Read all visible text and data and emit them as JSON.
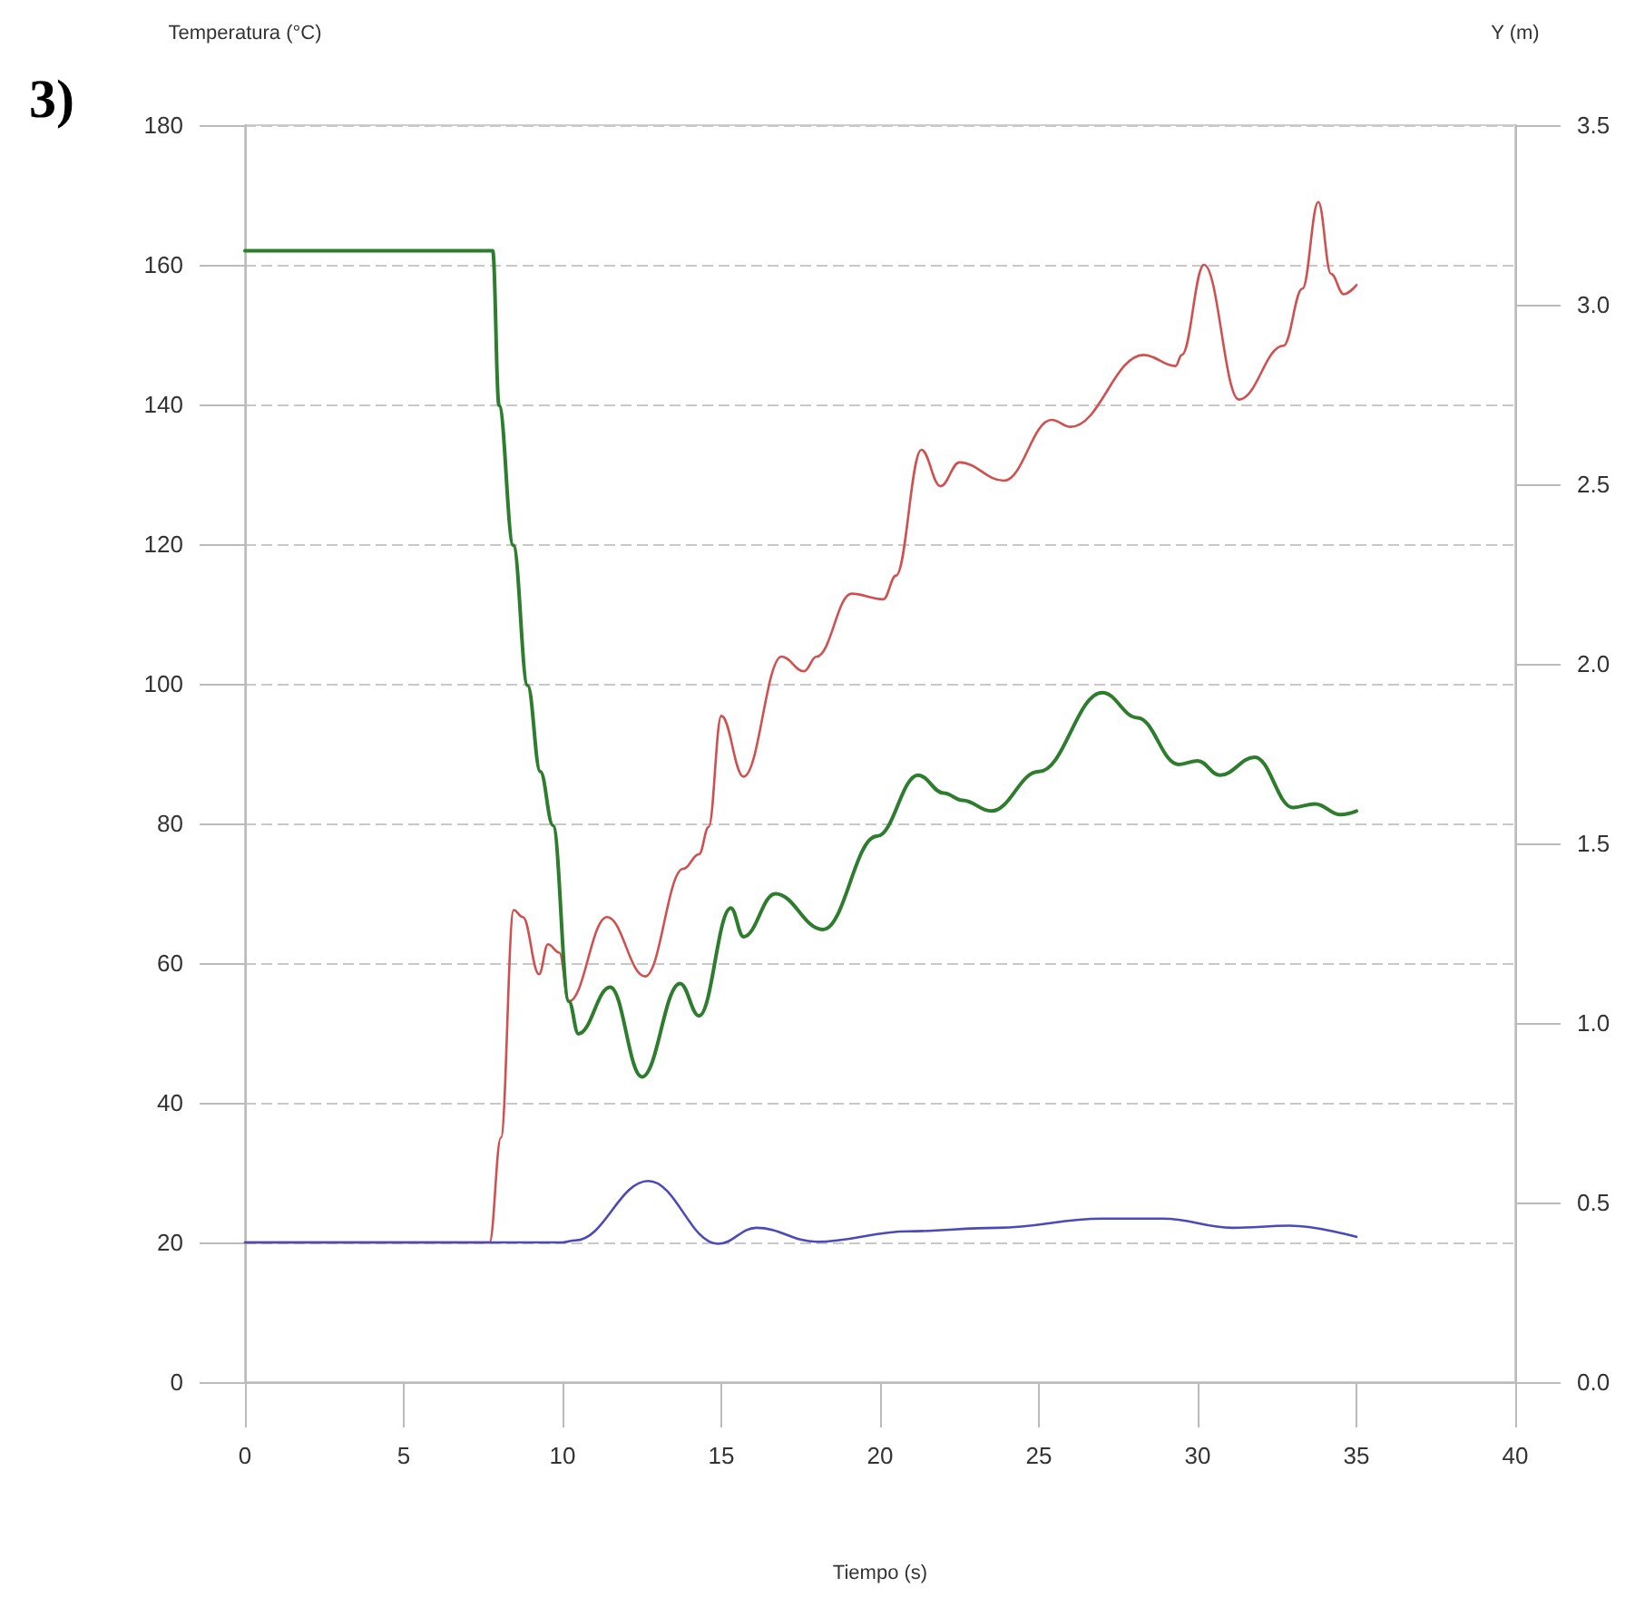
{
  "chart_data": {
    "type": "line",
    "xlabel": "Tiempo (s)",
    "ylabel": "Temperatura (°C)",
    "y2label": "Y (m)",
    "annotations": [
      "3)"
    ],
    "xlim": [
      0,
      40
    ],
    "xticks": [
      0,
      5,
      10,
      15,
      20,
      25,
      30,
      35,
      40
    ],
    "ylim": [
      0,
      180
    ],
    "yticks": [
      0,
      20,
      40,
      60,
      80,
      100,
      120,
      140,
      160,
      180
    ],
    "y2lim": [
      0,
      3.5
    ],
    "y2ticks": [
      {
        "value": 0,
        "label": "0.0"
      },
      {
        "value": 0.5,
        "label": "0.5"
      },
      {
        "value": 1,
        "label": "1.0"
      },
      {
        "value": 1.5,
        "label": "1.5"
      },
      {
        "value": 2,
        "label": "2.0"
      },
      {
        "value": 2.5,
        "label": "2.5"
      },
      {
        "value": 3,
        "label": "3.0"
      },
      {
        "value": 3.5,
        "label": "3.5"
      }
    ],
    "grid": "y",
    "marker": "none",
    "line_style": "solid",
    "series": [
      {
        "color": "#d05050",
        "x": [
          0,
          7.7,
          8.06,
          8.46,
          8.75,
          9.26,
          9.54,
          9.9,
          10.2,
          11.4,
          12.6,
          13.8,
          14.3,
          14.6,
          15.0,
          15.7,
          16.9,
          17.6,
          18.0,
          19.1,
          20.1,
          20.5,
          21.3,
          21.9,
          22.5,
          23.9,
          25.4,
          26.0,
          28.3,
          29.3,
          29.5,
          30.2,
          31.3,
          32.7,
          33.3,
          33.8,
          34.2,
          34.6,
          35.0
        ],
        "values": [
          20,
          20,
          35,
          67.6,
          66.6,
          58.4,
          62.7,
          61.5,
          54.5,
          66.6,
          58.1,
          73.5,
          75.6,
          79.5,
          95.4,
          86.7,
          103.9,
          101.8,
          103.9,
          112.9,
          112.1,
          115.5,
          133.5,
          128.3,
          131.7,
          129.1,
          137.8,
          136.8,
          147.1,
          145.5,
          147.1,
          160,
          140.7,
          148.4,
          156.6,
          169,
          158.7,
          155.8,
          157.1
        ]
      },
      {
        "color": "#2e7d2e",
        "axis": "y2",
        "x": [
          0,
          7.8,
          8.0,
          8.45,
          8.9,
          9.3,
          9.7,
          10.2,
          10.5,
          11.5,
          12.5,
          13.7,
          14.3,
          15.3,
          15.7,
          16.7,
          18.2,
          19.9,
          21.2,
          22.0,
          22.6,
          23.5,
          25.0,
          27.0,
          28.1,
          29.4,
          30.0,
          30.7,
          31.8,
          33.0,
          33.7,
          34.5,
          35.0
        ],
        "values": [
          3.15,
          3.15,
          2.72,
          2.33,
          1.94,
          1.7,
          1.55,
          1.06,
          0.97,
          1.1,
          0.85,
          1.11,
          1.02,
          1.32,
          1.24,
          1.36,
          1.26,
          1.52,
          1.69,
          1.64,
          1.62,
          1.59,
          1.7,
          1.92,
          1.85,
          1.72,
          1.73,
          1.69,
          1.74,
          1.6,
          1.61,
          1.58,
          1.59
        ]
      },
      {
        "color": "#4a4ab8",
        "x": [
          0,
          10.0,
          10.4,
          12.7,
          14.9,
          16.1,
          18.0,
          20.9,
          23.7,
          27.0,
          28.9,
          31.1,
          32.9,
          35.0
        ],
        "values": [
          20,
          20,
          20.3,
          28.8,
          19.8,
          22.1,
          20.1,
          21.6,
          22.1,
          23.4,
          23.4,
          22.1,
          22.4,
          20.8
        ]
      }
    ]
  }
}
